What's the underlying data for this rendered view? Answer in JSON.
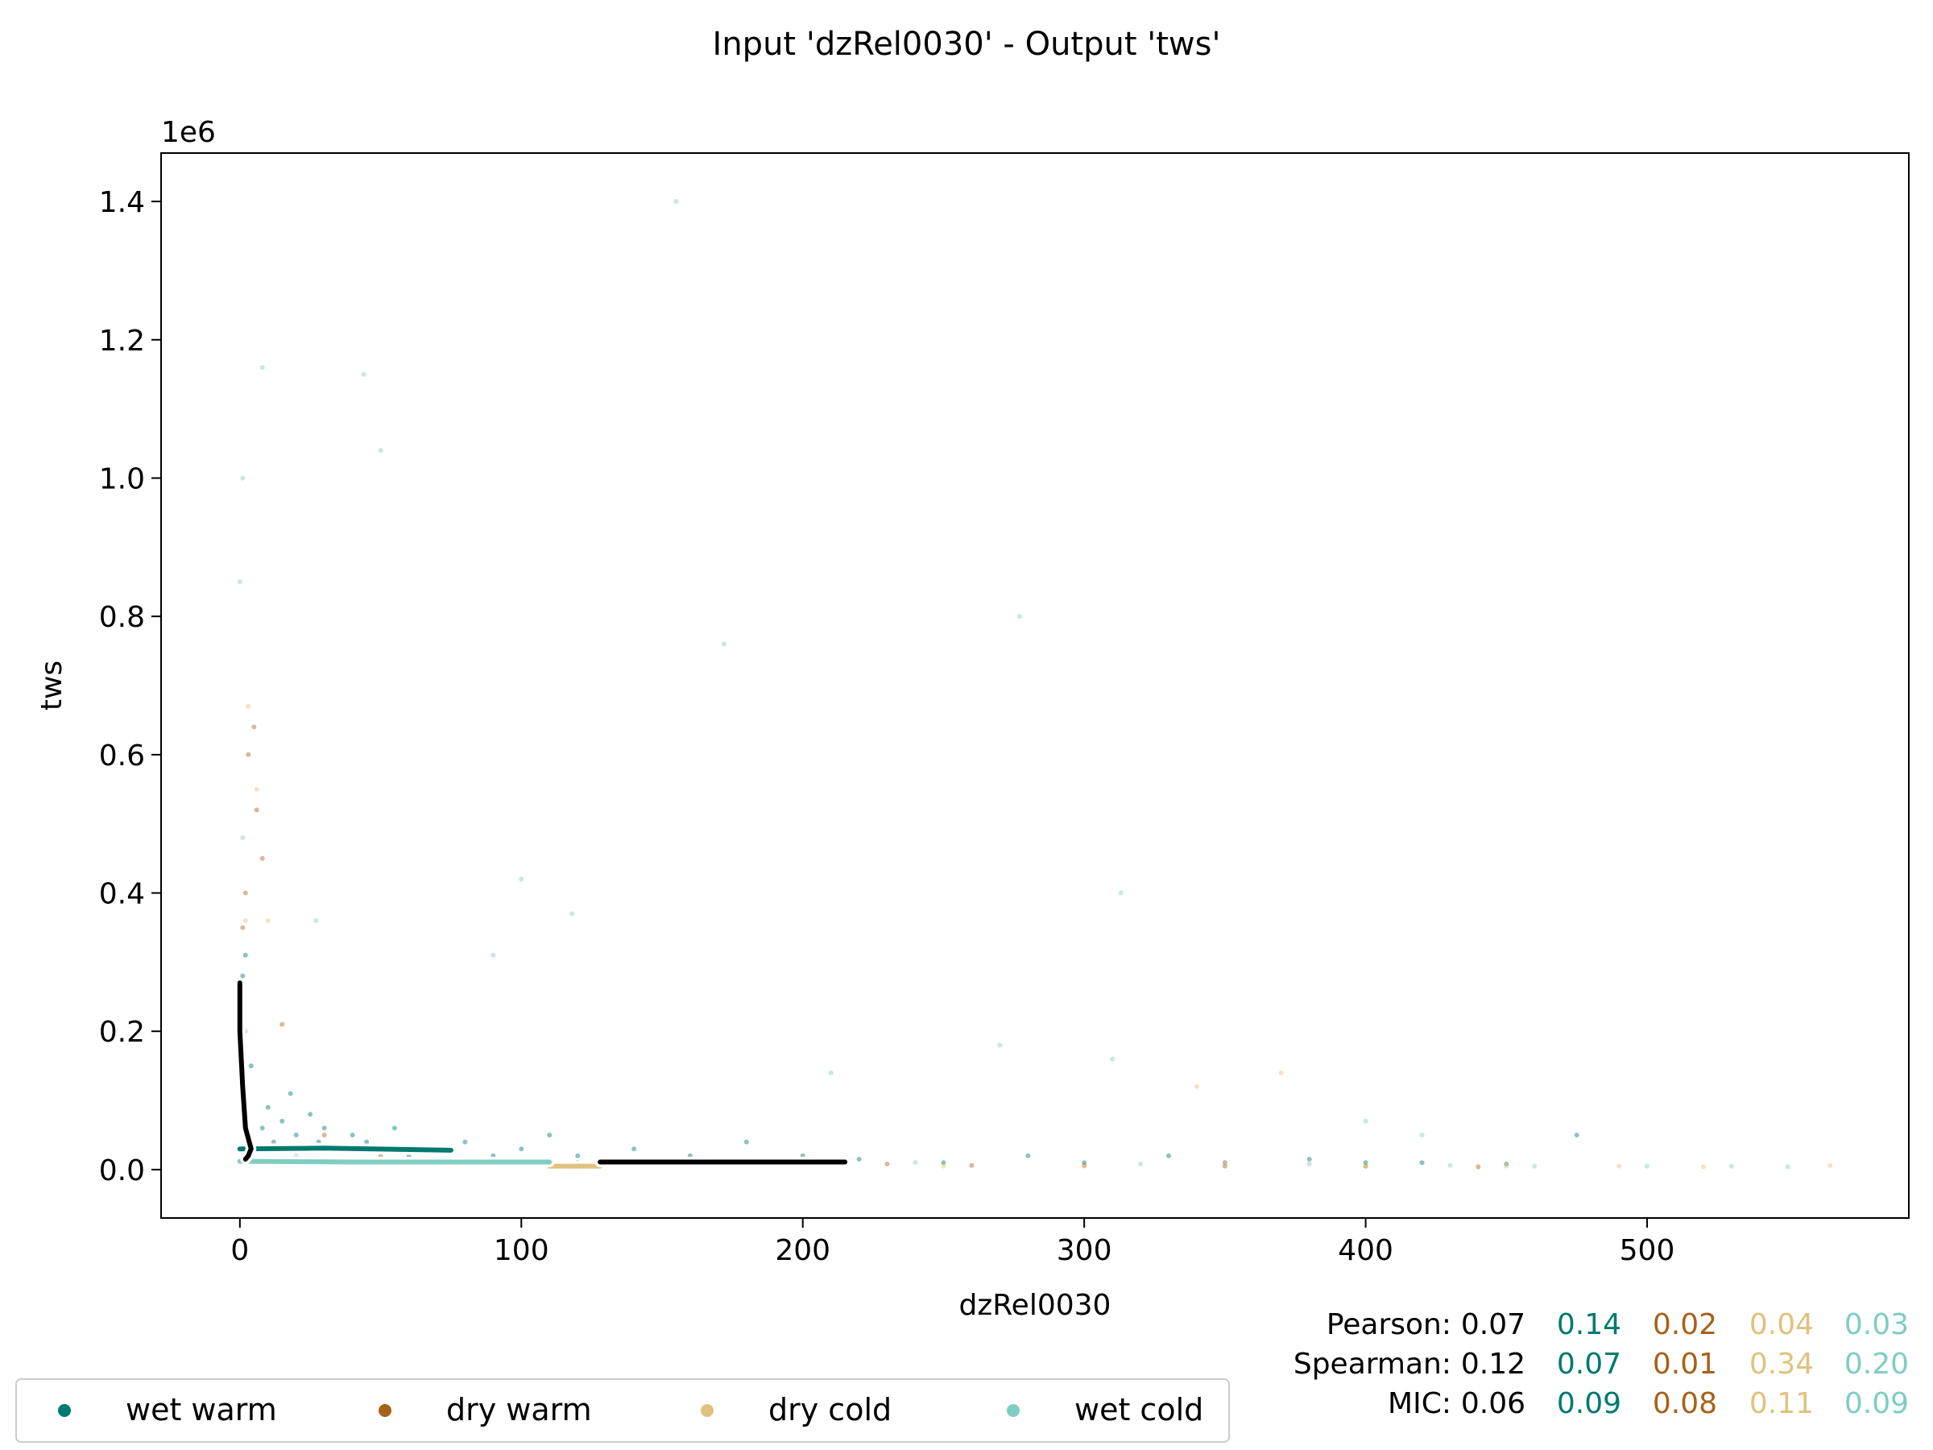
{
  "chart_data": {
    "type": "scatter",
    "title": "Input 'dzRel0030' - Output 'tws'",
    "xlabel": "dzRel0030",
    "ylabel": "tws",
    "y_offset_label": "1e6",
    "xlim": [
      -28,
      593
    ],
    "ylim": [
      -0.07,
      1.47
    ],
    "y_scale_note": "y values in units of 1e6",
    "xticks": [
      0,
      100,
      200,
      300,
      400,
      500
    ],
    "xtick_labels": [
      "0",
      "100",
      "200",
      "300",
      "400",
      "500"
    ],
    "yticks": [
      0.0,
      0.2,
      0.4,
      0.6,
      0.8,
      1.0,
      1.2,
      1.4
    ],
    "ytick_labels": [
      "0.0",
      "0.2",
      "0.4",
      "0.6",
      "0.8",
      "1.0",
      "1.2",
      "1.4"
    ],
    "grid": false,
    "legend_position": "bottom-left, below axes",
    "series": [
      {
        "name": "wet warm",
        "color": "#01796f",
        "points": [
          [
            5,
            0.03
          ],
          [
            8,
            0.06
          ],
          [
            10,
            0.09
          ],
          [
            12,
            0.04
          ],
          [
            15,
            0.07
          ],
          [
            18,
            0.11
          ],
          [
            20,
            0.05
          ],
          [
            22,
            0.03
          ],
          [
            25,
            0.08
          ],
          [
            28,
            0.04
          ],
          [
            30,
            0.06
          ],
          [
            35,
            0.03
          ],
          [
            40,
            0.05
          ],
          [
            45,
            0.04
          ],
          [
            50,
            0.03
          ],
          [
            55,
            0.06
          ],
          [
            60,
            0.02
          ],
          [
            70,
            0.03
          ],
          [
            80,
            0.04
          ],
          [
            90,
            0.02
          ],
          [
            100,
            0.03
          ],
          [
            110,
            0.05
          ],
          [
            120,
            0.02
          ],
          [
            140,
            0.03
          ],
          [
            160,
            0.02
          ],
          [
            180,
            0.04
          ],
          [
            200,
            0.02
          ],
          [
            220,
            0.015
          ],
          [
            250,
            0.01
          ],
          [
            280,
            0.02
          ],
          [
            300,
            0.01
          ],
          [
            330,
            0.02
          ],
          [
            350,
            0.01
          ],
          [
            380,
            0.015
          ],
          [
            400,
            0.01
          ],
          [
            420,
            0.01
          ],
          [
            450,
            0.008
          ],
          [
            475,
            0.05
          ],
          [
            2,
            0.31
          ],
          [
            1,
            0.28
          ],
          [
            4,
            0.15
          ]
        ],
        "trend": [
          [
            0,
            0.03
          ],
          [
            30,
            0.031
          ],
          [
            60,
            0.029
          ],
          [
            75,
            0.028
          ]
        ]
      },
      {
        "name": "dry warm",
        "color": "#a6611a",
        "points": [
          [
            2,
            0.4
          ],
          [
            3,
            0.6
          ],
          [
            5,
            0.64
          ],
          [
            6,
            0.52
          ],
          [
            8,
            0.45
          ],
          [
            1,
            0.35
          ],
          [
            15,
            0.21
          ],
          [
            30,
            0.05
          ],
          [
            50,
            0.02
          ],
          [
            80,
            0.01
          ],
          [
            120,
            0.01
          ],
          [
            180,
            0.008
          ],
          [
            230,
            0.008
          ],
          [
            260,
            0.006
          ],
          [
            300,
            0.006
          ],
          [
            350,
            0.005
          ],
          [
            400,
            0.005
          ],
          [
            440,
            0.004
          ]
        ],
        "trend": []
      },
      {
        "name": "dry cold",
        "color": "#dfc27d",
        "points": [
          [
            3,
            0.67
          ],
          [
            6,
            0.55
          ],
          [
            10,
            0.36
          ],
          [
            2,
            0.36
          ],
          [
            100,
            0.01
          ],
          [
            200,
            0.01
          ],
          [
            250,
            0.005
          ],
          [
            300,
            0.005
          ],
          [
            350,
            0.01
          ],
          [
            400,
            0.005
          ],
          [
            450,
            0.005
          ],
          [
            490,
            0.005
          ],
          [
            520,
            0.004
          ],
          [
            565,
            0.006
          ],
          [
            340,
            0.12
          ],
          [
            370,
            0.14
          ]
        ],
        "trend": [
          [
            110,
            0.005
          ],
          [
            128,
            0.005
          ]
        ]
      },
      {
        "name": "wet cold",
        "color": "#80cdc1",
        "points": [
          [
            1,
            1.0
          ],
          [
            0,
            0.85
          ],
          [
            1,
            0.48
          ],
          [
            2,
            0.2
          ],
          [
            27,
            0.36
          ],
          [
            118,
            0.37
          ],
          [
            90,
            0.31
          ],
          [
            155,
            1.4
          ],
          [
            8,
            1.16
          ],
          [
            44,
            1.15
          ],
          [
            50,
            1.04
          ],
          [
            172,
            0.76
          ],
          [
            277,
            0.8
          ],
          [
            100,
            0.42
          ],
          [
            313,
            0.4
          ],
          [
            310,
            0.16
          ],
          [
            270,
            0.18
          ],
          [
            210,
            0.14
          ],
          [
            400,
            0.07
          ],
          [
            420,
            0.05
          ],
          [
            500,
            0.005
          ],
          [
            530,
            0.005
          ],
          [
            550,
            0.004
          ],
          [
            20,
            0.02
          ],
          [
            60,
            0.015
          ],
          [
            140,
            0.01
          ],
          [
            240,
            0.01
          ],
          [
            320,
            0.008
          ],
          [
            380,
            0.008
          ],
          [
            430,
            0.006
          ],
          [
            460,
            0.005
          ]
        ],
        "trend": [
          [
            0,
            0.012
          ],
          [
            40,
            0.011
          ],
          [
            80,
            0.011
          ],
          [
            110,
            0.011
          ]
        ]
      }
    ],
    "overall_trend": [
      [
        0,
        0.27
      ],
      [
        0,
        0.2
      ],
      [
        1,
        0.12
      ],
      [
        2,
        0.06
      ],
      [
        4,
        0.03
      ],
      [
        3,
        0.02
      ],
      [
        2,
        0.015
      ]
    ],
    "overall_trend_tail": [
      [
        128,
        0.011
      ],
      [
        215,
        0.011
      ]
    ],
    "stats": {
      "rows": [
        {
          "label": "Pearson:",
          "values": [
            "0.07",
            "0.14",
            "0.02",
            "0.04",
            "0.03"
          ]
        },
        {
          "label": "Spearman:",
          "values": [
            "0.12",
            "0.07",
            "0.01",
            "0.34",
            "0.20"
          ]
        },
        {
          "label": "MIC:",
          "values": [
            "0.06",
            "0.09",
            "0.08",
            "0.11",
            "0.09"
          ]
        }
      ],
      "colors": [
        "#000000",
        "#01796f",
        "#a6611a",
        "#dfc27d",
        "#80cdc1"
      ]
    }
  }
}
